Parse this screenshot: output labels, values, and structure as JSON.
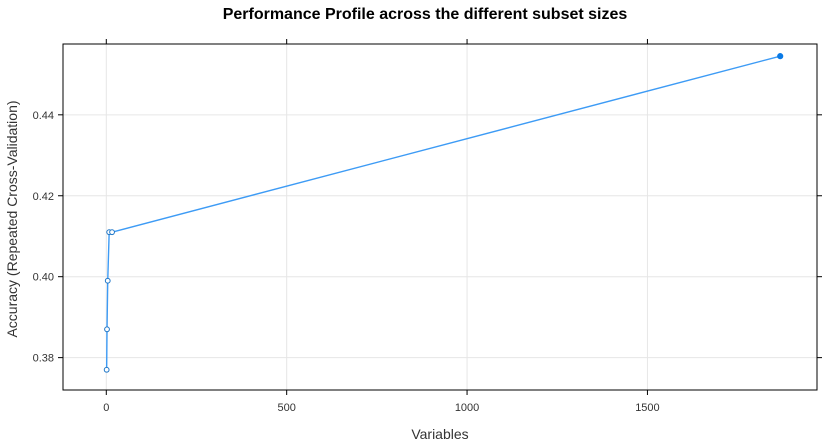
{
  "chart_data": {
    "type": "line",
    "title": "Performance Profile across the different subset sizes",
    "xlabel": "Variables",
    "ylabel": "Accuracy (Repeated Cross-Validation)",
    "xlim": [
      -120,
      1970
    ],
    "ylim": [
      0.372,
      0.4575
    ],
    "x_ticks": [
      0,
      500,
      1000,
      1500
    ],
    "y_ticks": [
      0.38,
      0.4,
      0.42,
      0.44
    ],
    "x_tick_labels": [
      "0",
      "500",
      "1000",
      "1500"
    ],
    "y_tick_labels": [
      "0.38",
      "0.40",
      "0.42",
      "0.44"
    ],
    "grid": true,
    "series": [
      {
        "x": [
          1,
          2,
          4,
          8,
          16,
          1868
        ],
        "y": [
          0.377,
          0.387,
          0.399,
          0.411,
          0.411,
          0.4545
        ],
        "selected_index": 5
      }
    ],
    "colors": {
      "line": "#3d9bf5",
      "point_stroke": "#1f77c8",
      "selected_point": "#0a7ae6",
      "grid": "#e6e6e6",
      "frame": "#000000"
    }
  }
}
